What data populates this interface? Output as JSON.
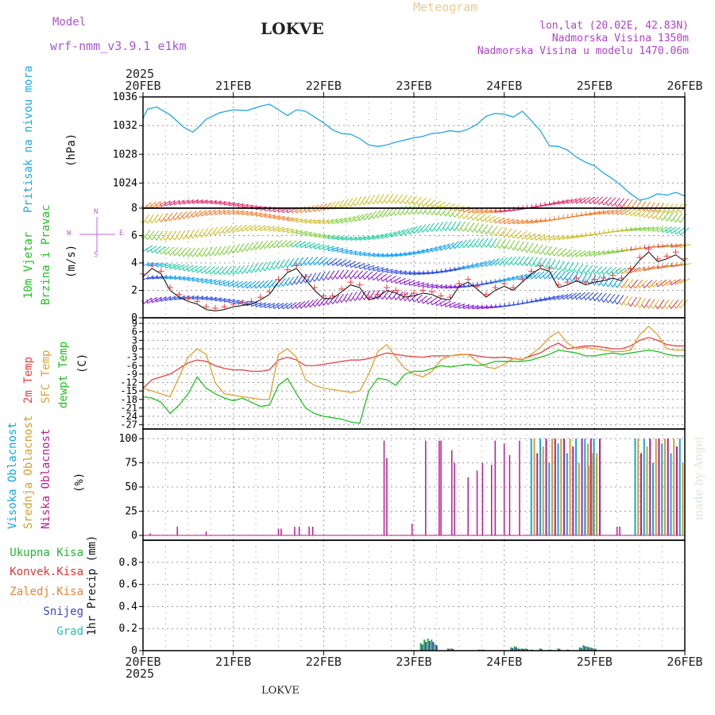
{
  "header": {
    "model_label": "Model",
    "model_name": "wrf-nmm_v3.9.1 e1km",
    "station": "LOKVE",
    "meteogram": "Meteogram",
    "lonlat": "lon,lat (20.02E, 42.83N)",
    "altitude": "Nadmorska Visina 1350m",
    "model_altitude": "Nadmorska Visina u modelu 1470.06m",
    "year_top": "2025",
    "year_bottom": "2025",
    "footer_station": "LOKVE",
    "credit": "made by Angel"
  },
  "colors": {
    "pressure": "#1ea8e0",
    "temp2m": "#e84040",
    "sfc": "#e0a030",
    "dew": "#20c020",
    "high": "#10a8e0",
    "mid": "#d0a030",
    "low": "#c01890",
    "total": "#20b830",
    "conv": "#e83030",
    "frozen": "#f08030",
    "snow": "#4040d0",
    "graupel": "#20c0b0",
    "purple": "#c060e0"
  },
  "chart_data": [
    {
      "panel": "pressure",
      "type": "line",
      "ylabel": "Pritisak na nivou mora",
      "unit": "(hPa)",
      "yticks": [
        1024,
        1028,
        1032,
        1036
      ],
      "ylim": [
        1020.5,
        1036
      ],
      "x": [
        0,
        0.05,
        0.15,
        0.3,
        0.45,
        0.55,
        0.6,
        0.7,
        0.85,
        1.0,
        1.15,
        1.3,
        1.4,
        1.5,
        1.6,
        1.7,
        1.8,
        1.9,
        2.0,
        2.1,
        2.2,
        2.3,
        2.4,
        2.5,
        2.6,
        2.7,
        2.8,
        2.9,
        3.0,
        3.1,
        3.2,
        3.3,
        3.4,
        3.5,
        3.6,
        3.7,
        3.8,
        3.9,
        4.0,
        4.1,
        4.2,
        4.3,
        4.4,
        4.5,
        4.6,
        4.7,
        4.8,
        4.9,
        5.0,
        5.1,
        5.2,
        5.3,
        5.4,
        5.5,
        5.6,
        5.7,
        5.8,
        5.9,
        6.0
      ],
      "values": [
        1033,
        1034.3,
        1034.6,
        1033.5,
        1031.8,
        1031.1,
        1031.6,
        1032.9,
        1033.8,
        1034.2,
        1034.1,
        1034.7,
        1035,
        1034.2,
        1033.4,
        1034.2,
        1034,
        1033.2,
        1032.4,
        1031.4,
        1030.9,
        1030.8,
        1030.2,
        1029.3,
        1029.1,
        1029.3,
        1029.7,
        1030,
        1030.3,
        1030.5,
        1030.9,
        1031,
        1031.3,
        1031.1,
        1031.5,
        1032.2,
        1033.3,
        1033.7,
        1033.6,
        1033.2,
        1034,
        1032.7,
        1031.3,
        1029.2,
        1029.1,
        1028.6,
        1027.6,
        1026.9,
        1026.4,
        1025.4,
        1024.6,
        1023.6,
        1022.5,
        1021.6,
        1021.9,
        1022.5,
        1022.3,
        1022.7,
        1022.2
      ]
    },
    {
      "panel": "wind",
      "type": "line+barbs",
      "ylabel": "10m Vjetar",
      "ylabel2": "Brzina i Pravac",
      "unit": "(m/s)",
      "yticks": [
        0,
        2,
        4,
        6,
        8
      ],
      "ylim": [
        0,
        8
      ],
      "compass": {
        "n": "N",
        "e": "E",
        "w": "W",
        "s": "S"
      },
      "x": [
        0,
        0.1,
        0.2,
        0.3,
        0.4,
        0.5,
        0.6,
        0.7,
        0.8,
        0.9,
        1.0,
        1.1,
        1.2,
        1.3,
        1.4,
        1.5,
        1.6,
        1.7,
        1.8,
        1.9,
        2.0,
        2.1,
        2.2,
        2.3,
        2.4,
        2.5,
        2.6,
        2.7,
        2.8,
        2.9,
        3.0,
        3.1,
        3.2,
        3.3,
        3.4,
        3.5,
        3.6,
        3.7,
        3.8,
        3.9,
        4.0,
        4.1,
        4.2,
        4.3,
        4.4,
        4.5,
        4.6,
        4.7,
        4.8,
        4.9,
        5.0,
        5.1,
        5.2,
        5.3,
        5.4,
        5.5,
        5.6,
        5.7,
        5.8,
        5.9,
        6.0
      ],
      "speed": [
        3.0,
        3.6,
        3.2,
        2.0,
        1.5,
        1.2,
        1.0,
        0.6,
        0.5,
        0.6,
        0.8,
        0.9,
        1.0,
        1.3,
        1.7,
        2.6,
        3.3,
        3.6,
        2.8,
        2.0,
        1.4,
        1.4,
        1.9,
        2.4,
        2.2,
        1.3,
        1.5,
        2.0,
        1.8,
        1.5,
        1.6,
        1.8,
        1.7,
        1.4,
        1.3,
        2.3,
        2.6,
        2.1,
        1.5,
        2.0,
        2.3,
        2.0,
        2.6,
        3.2,
        3.6,
        3.4,
        2.2,
        2.4,
        2.7,
        2.4,
        2.6,
        2.7,
        2.9,
        2.7,
        3.4,
        4.2,
        4.8,
        4.1,
        4.3,
        4.6,
        4.1
      ],
      "barb_levels": [
        1,
        2.5,
        3.5,
        4.8,
        6,
        7.2,
        8
      ]
    },
    {
      "panel": "temperature",
      "type": "line",
      "ylabel": "2m Temp",
      "ylabel2": "SFC Temp",
      "ylabel3": "dewpt Temp",
      "unit": "(C)",
      "yticks": [
        -27,
        -24,
        -21,
        -18,
        -15,
        -12,
        -9,
        -6,
        -3,
        0,
        3,
        6,
        9
      ],
      "ylim": [
        -28.5,
        11
      ],
      "x": [
        0,
        0.1,
        0.2,
        0.3,
        0.4,
        0.5,
        0.6,
        0.7,
        0.8,
        0.9,
        1.0,
        1.1,
        1.2,
        1.3,
        1.4,
        1.5,
        1.6,
        1.7,
        1.8,
        1.9,
        2.0,
        2.1,
        2.2,
        2.3,
        2.4,
        2.5,
        2.6,
        2.7,
        2.8,
        2.9,
        3.0,
        3.1,
        3.2,
        3.3,
        3.4,
        3.5,
        3.6,
        3.7,
        3.8,
        3.9,
        4.0,
        4.1,
        4.2,
        4.3,
        4.4,
        4.5,
        4.6,
        4.7,
        4.8,
        4.9,
        5.0,
        5.1,
        5.2,
        5.3,
        5.4,
        5.5,
        5.6,
        5.7,
        5.8,
        5.9,
        6.0
      ],
      "t2m": [
        -14,
        -11,
        -10,
        -9,
        -7,
        -5,
        -4,
        -4.5,
        -6,
        -7,
        -7.5,
        -7.5,
        -8,
        -8,
        -7.5,
        -4,
        -3,
        -4,
        -6,
        -6,
        -5.5,
        -5,
        -4.5,
        -4,
        -4,
        -3.5,
        -2.5,
        -1.5,
        -2,
        -2.5,
        -2.8,
        -3,
        -2.5,
        -2.5,
        -2.5,
        -2.2,
        -2,
        -2.5,
        -3,
        -3.2,
        -3,
        -3.5,
        -3.8,
        -2.5,
        -1.5,
        0.5,
        2.0,
        0,
        0.5,
        1.0,
        1.0,
        0.5,
        0,
        0,
        1.0,
        3.0,
        4.0,
        3.0,
        1.5,
        1.0,
        1.0
      ],
      "sfc": [
        -14,
        -15,
        -16,
        -17,
        -10,
        -3,
        0,
        -2,
        -12,
        -16,
        -16.5,
        -17,
        -17.5,
        -18,
        -18,
        -2,
        0,
        -3,
        -11,
        -13,
        -14,
        -14.5,
        -15,
        -15.5,
        -15,
        -9,
        -1,
        1.5,
        -3,
        -7,
        -9,
        -10,
        -8,
        -4,
        -2.5,
        -2,
        -2,
        -4.5,
        -6.5,
        -7,
        -5.5,
        -3.5,
        -4,
        -2,
        0.5,
        4,
        6,
        2,
        0,
        0.5,
        0,
        -0.5,
        -1,
        -1,
        -0.5,
        5,
        8,
        5,
        0,
        -0.5,
        -0.5
      ],
      "dew": [
        -17,
        -17.5,
        -19,
        -23,
        -20,
        -16,
        -10,
        -14,
        -16,
        -17.5,
        -18.5,
        -17.5,
        -19,
        -20.5,
        -20,
        -13,
        -10.5,
        -16,
        -21,
        -23,
        -24,
        -24.5,
        -25,
        -26,
        -26.5,
        -15,
        -10.5,
        -11,
        -13,
        -9,
        -8,
        -8,
        -7,
        -6,
        -6.5,
        -6,
        -5.5,
        -6,
        -5.5,
        -4.5,
        -4.5,
        -4.5,
        -4.5,
        -4,
        -3,
        -2,
        -0.5,
        -1,
        -1.5,
        -2.5,
        -2.5,
        -2,
        -1.5,
        -2,
        -1.5,
        -1,
        -0.5,
        -1,
        -2,
        -2.5,
        -2.5
      ]
    },
    {
      "panel": "clouds",
      "type": "bar",
      "ylabel": "Visoka Oblacnost",
      "ylabel2": "Srednja Oblacnost",
      "ylabel3": "Niska Oblacnost",
      "unit": "(%)",
      "yticks": [
        0,
        25,
        50,
        75,
        100
      ],
      "ylim": [
        -5,
        110
      ],
      "low_x": [
        0.08,
        0.38,
        0.7,
        1.5,
        1.53,
        1.68,
        1.73,
        1.84,
        1.88,
        2.67,
        2.7,
        2.98,
        3.13,
        3.28,
        3.3,
        3.42,
        3.45,
        3.6,
        3.7,
        3.76,
        3.86,
        3.9,
        4.0,
        4.06,
        4.17,
        5.25,
        5.28
      ],
      "low_y": [
        2,
        9,
        4,
        7,
        7,
        9,
        9,
        9,
        9,
        98,
        80,
        12,
        98,
        98,
        98,
        88,
        75,
        60,
        67,
        75,
        73,
        98,
        95,
        83,
        98,
        9,
        9
      ],
      "dense_ranges": [
        [
          4.3,
          5.08
        ],
        [
          5.45,
          6.0
        ]
      ],
      "dense_step": 0.033,
      "dense_heights": [
        100,
        100,
        85,
        100,
        92,
        100,
        75,
        100,
        100,
        95
      ],
      "sparse_mid_x": [
        4.9,
        4.94,
        4.98,
        5.02
      ],
      "sparse_mid_y": [
        70,
        72,
        85,
        80
      ]
    },
    {
      "panel": "precip",
      "type": "bar",
      "ylabel": "1hr Precip (mm)",
      "legend": [
        "Ukupna Kisa",
        "Konvek.Kisa",
        "Zaledj.Kisa",
        "Snijeg",
        "Grad"
      ],
      "yticks": [
        0,
        0.2,
        0.4,
        0.6,
        0.8
      ],
      "ylim": [
        0,
        1.0
      ],
      "x": [
        3.08,
        3.12,
        3.16,
        3.2,
        3.24,
        3.38,
        3.42,
        3.72,
        3.76,
        4.08,
        4.12,
        4.16,
        4.2,
        4.24,
        4.3,
        4.4,
        4.5,
        4.6,
        4.7,
        4.84,
        4.88,
        4.92,
        4.96,
        5.0
      ],
      "values": [
        0.07,
        0.1,
        0.11,
        0.1,
        0.06,
        0.02,
        0.02,
        0.01,
        0.01,
        0.03,
        0.04,
        0.02,
        0.02,
        0.02,
        0.01,
        0.02,
        0.01,
        0.02,
        0.01,
        0.03,
        0.05,
        0.04,
        0.03,
        0.02
      ]
    }
  ],
  "xaxis": {
    "labels": [
      "20FEB",
      "21FEB",
      "22FEB",
      "23FEB",
      "24FEB",
      "25FEB",
      "26FEB"
    ]
  }
}
